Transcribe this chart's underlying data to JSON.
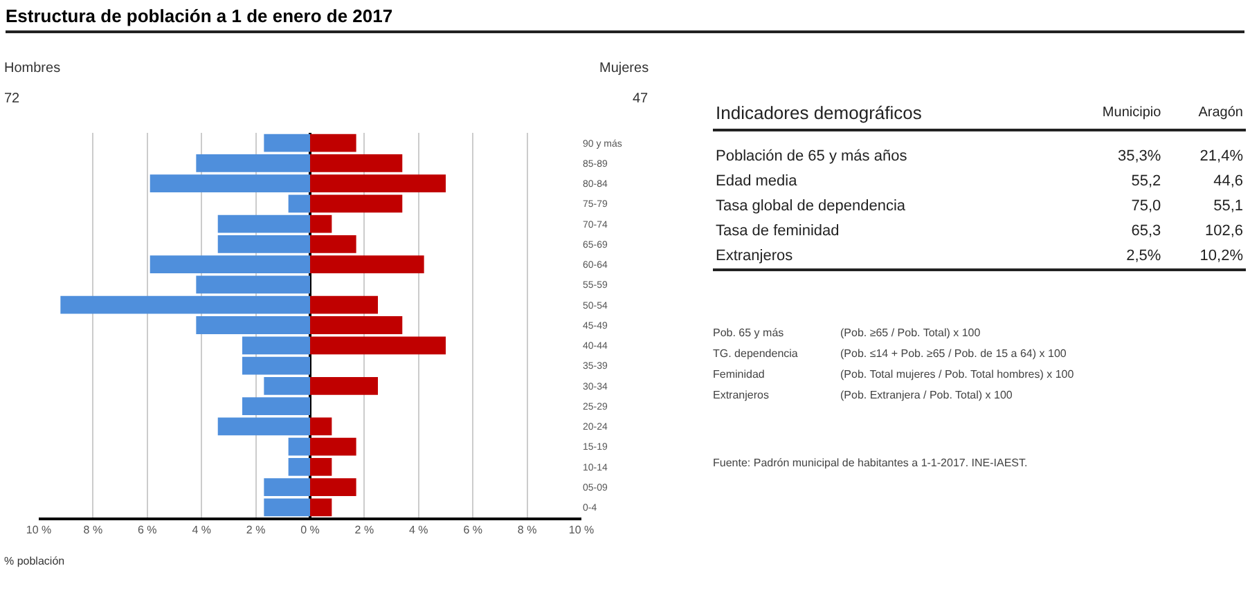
{
  "chart_data": [
    {
      "type": "bar",
      "title": "Estructura de población a 1 de enero de 2017",
      "orientation": "horizontal",
      "xlabel": "% población",
      "categories": [
        "90 y más",
        "85-89",
        "80-84",
        "75-79",
        "70-74",
        "65-69",
        "60-64",
        "55-59",
        "50-54",
        "45-49",
        "40-44",
        "35-39",
        "30-34",
        "25-29",
        "20-24",
        "15-19",
        "10-14",
        "05-09",
        "0-4"
      ],
      "series": [
        {
          "color": "#4f8fdc",
          "values": [
            -1.7,
            -4.2,
            -5.9,
            -0.8,
            -3.4,
            -3.4,
            -5.9,
            -4.2,
            -9.2,
            -4.2,
            -2.5,
            -2.5,
            -1.7,
            -2.5,
            -3.4,
            -0.8,
            -0.8,
            -1.7,
            -1.7
          ]
        },
        {
          "color": "#c00000",
          "values": [
            1.7,
            3.4,
            5.0,
            3.4,
            0.8,
            1.7,
            4.2,
            0,
            2.5,
            3.4,
            5.0,
            0,
            2.5,
            0,
            0.8,
            1.7,
            0.8,
            1.7,
            0.8
          ]
        }
      ],
      "annotations": [
        "Hombres",
        "72",
        "Mujeres",
        "47"
      ],
      "stacked": true,
      "xlim": [
        -10,
        10
      ],
      "xticks": [
        {
          "value": -10,
          "label": "10 %"
        },
        {
          "value": -8,
          "label": "8 %"
        },
        {
          "value": -6,
          "label": "6 %"
        },
        {
          "value": -4,
          "label": "4 %"
        },
        {
          "value": -2,
          "label": "2 %"
        },
        {
          "value": 0,
          "label": "0 %"
        },
        {
          "value": 2,
          "label": "2 %"
        },
        {
          "value": 4,
          "label": "4 %"
        },
        {
          "value": 6,
          "label": "6 %"
        },
        {
          "value": 8,
          "label": "8 %"
        },
        {
          "value": 10,
          "label": "10 %"
        }
      ],
      "grid": "x",
      "legend": false
    },
    {
      "type": "other",
      "title": "Indicadores demográficos",
      "categories": [
        "Población de 65 y más años",
        "Edad media",
        "Tasa global de dependencia",
        "Tasa de feminidad",
        "Extranjeros"
      ],
      "series": [
        {
          "name": "Municipio",
          "values": [
            35.3,
            55.2,
            75.0,
            65.3,
            2.5
          ],
          "value_labels": [
            "35,3%",
            "55,2",
            "75,0",
            "65,3",
            "2,5%"
          ]
        },
        {
          "name": "Aragón",
          "values": [
            21.4,
            44.6,
            55.1,
            102.6,
            10.2
          ],
          "value_labels": [
            "21,4%",
            "44,6",
            "55,1",
            "102,6",
            "10,2%"
          ]
        }
      ],
      "annotations": [
        "Pob. 65 y más",
        "(Pob. ≥65 / Pob. Total) x 100",
        "TG. dependencia",
        "(Pob. ≤14 + Pob. ≥65 / Pob. de 15 a 64) x 100",
        "Feminidad",
        "(Pob. Total mujeres / Pob. Total hombres) x 100",
        "Extranjeros",
        "(Pob. Extranjera / Pob. Total) x 100",
        "Fuente: Padrón municipal de habitantes a 1-1-2017. INE-IAEST."
      ]
    }
  ]
}
